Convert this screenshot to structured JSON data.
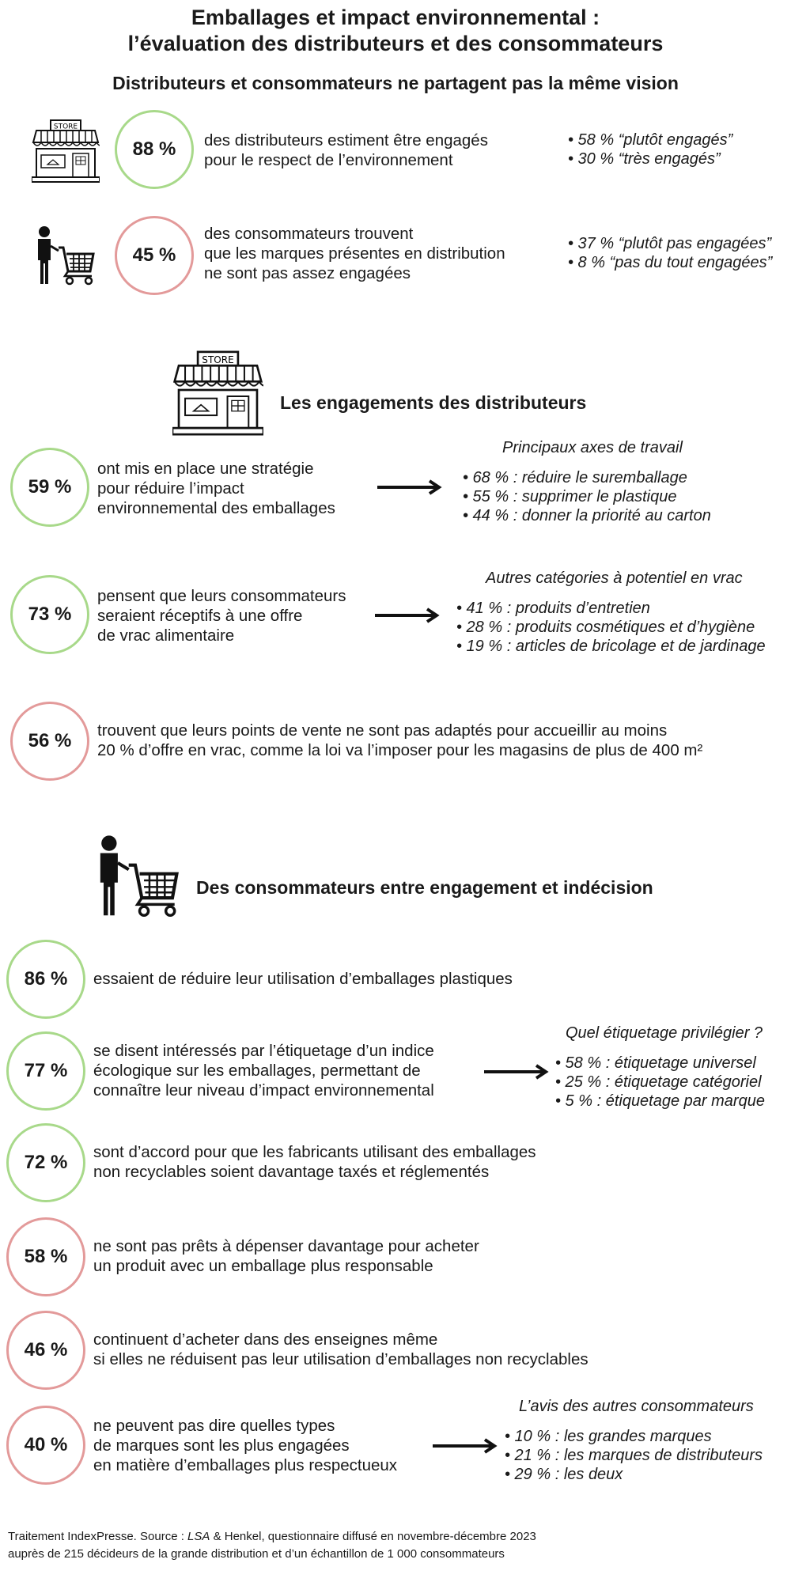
{
  "header": {
    "title_line1": "Emballages et impact environnemental :",
    "title_line2": "l’évaluation des distributeurs et des consommateurs",
    "subtitle": "Distributeurs et consommateurs ne partagent pas la même vision"
  },
  "vision": {
    "store_sign": "STORE",
    "item1": {
      "percent": "88 %",
      "text_line1": "des distributeurs estiment être engagés",
      "text_line2": "pour le respect de l’environnement",
      "detail1": "• 58 % “plutôt engagés”",
      "detail2": "• 30 % “très engagés”"
    },
    "item2": {
      "percent": "45 %",
      "text_line1": "des consommateurs trouvent",
      "text_line2": "que les marques présentes en distribution",
      "text_line3": "ne sont pas assez engagées",
      "detail1": "• 37 % “plutôt pas engagées”",
      "detail2": "• 8 % “pas du tout engagées”"
    }
  },
  "distributors": {
    "store_sign": "STORE",
    "title": "Les engagements des distributeurs",
    "item1": {
      "percent": "59 %",
      "text_line1": "ont mis en place une stratégie",
      "text_line2": "pour réduire l’impact",
      "text_line3": "environnemental des emballages",
      "side_title": "Principaux axes de travail",
      "side1": "• 68 % : réduire le suremballage",
      "side2": "• 55 % : supprimer le plastique",
      "side3": "• 44 % : donner la priorité au carton"
    },
    "item2": {
      "percent": "73 %",
      "text_line1": "pensent que leurs consommateurs",
      "text_line2": "seraient réceptifs à une offre",
      "text_line3": "de vrac alimentaire",
      "side_title": "Autres catégories à potentiel en vrac",
      "side1": "• 41 % : produits d’entretien",
      "side2": "• 28 % : produits cosmétiques et d’hygiène",
      "side3": "• 19 % : articles de bricolage et de jardinage"
    },
    "item3": {
      "percent": "56 %",
      "text_line1": "trouvent que leurs points de vente ne sont pas adaptés pour accueillir au moins",
      "text_line2": "20 % d’offre en vrac, comme la loi va l’imposer pour les magasins de plus de 400 m²"
    }
  },
  "consumers": {
    "title": "Des consommateurs entre engagement et indécision",
    "item1": {
      "percent": "86 %",
      "text_line1": "essaient de réduire leur utilisation d’emballages plastiques"
    },
    "item2": {
      "percent": "77 %",
      "text_line1": "se disent intéressés par l’étiquetage d’un indice",
      "text_line2": "écologique sur les emballages, permettant de",
      "text_line3": "connaître leur niveau d’impact environnemental",
      "side_title": "Quel étiquetage privilégier ?",
      "side1": "• 58 % : étiquetage universel",
      "side2": "• 25 % : étiquetage catégoriel",
      "side3": "• 5 % : étiquetage par marque"
    },
    "item3": {
      "percent": "72 %",
      "text_line1": "sont d’accord pour que les fabricants utilisant des emballages",
      "text_line2": "non recyclables soient davantage taxés et réglementés"
    },
    "item4": {
      "percent": "58 %",
      "text_line1": "ne sont pas prêts à dépenser davantage pour acheter",
      "text_line2": "un produit avec un emballage plus responsable"
    },
    "item5": {
      "percent": "46 %",
      "text_line1": "continuent d’acheter dans des enseignes même",
      "text_line2": "si elles ne réduisent pas leur utilisation d’emballages non recyclables"
    },
    "item6": {
      "percent": "40 %",
      "text_line1": "ne peuvent pas dire quelles types",
      "text_line2": "de marques sont les plus engagées",
      "text_line3": "en matière d’emballages plus respectueux",
      "side_title": "L’avis des autres consommateurs",
      "side1": "• 10 % : les grandes marques",
      "side2": "• 21 % : les marques de distributeurs",
      "side3": "• 29 % : les deux"
    }
  },
  "footer": {
    "line1_prefix": "Traitement IndexPresse. Source : ",
    "line1_source": "LSA",
    "line1_suffix": " & Henkel, questionnaire diffusé en novembre-décembre 2023",
    "line2": "auprès de 215 décideurs de la grande distribution et d’un échantillon de 1 000 consommateurs"
  },
  "colors": {
    "positive_ring": "#a8d98a",
    "negative_ring": "#e39a9a",
    "text": "#1a1a1a"
  },
  "icons": [
    "store-icon",
    "shopper-cart-icon",
    "arrow-right-icon"
  ]
}
